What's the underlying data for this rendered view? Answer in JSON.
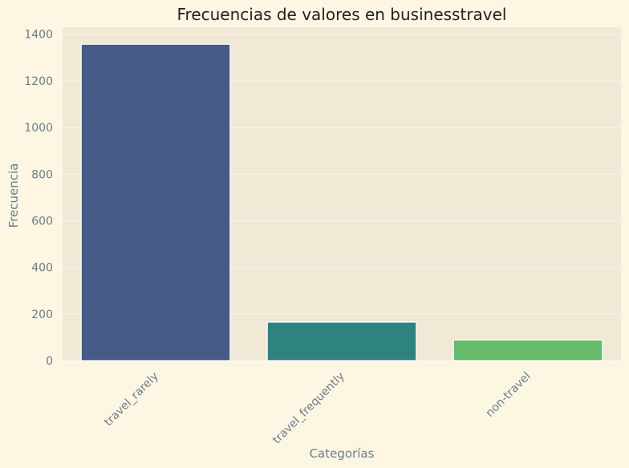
{
  "chart_data": {
    "type": "bar",
    "title": "Frecuencias de valores en businesstravel",
    "xlabel": "Categorías",
    "ylabel": "Frecuencia",
    "categories": [
      "travel_rarely",
      "travel_frequently",
      "non-travel"
    ],
    "values": [
      1357,
      165,
      89
    ],
    "colors": [
      "#455a85",
      "#2e8380",
      "#66bb6a"
    ],
    "yticks": [
      0,
      200,
      400,
      600,
      800,
      1000,
      1200,
      1400
    ],
    "ylim": [
      0,
      1430
    ],
    "grid": true,
    "legend": "none",
    "xtick_rotation": -45
  },
  "theme": {
    "page_background": "#fdf6e3",
    "plot_background": "#f0e9d6",
    "grid_color": "#fbf6ea",
    "bar_edge": "#ffffff",
    "tick_color": "#6c7a89",
    "title_color": "#222222"
  }
}
